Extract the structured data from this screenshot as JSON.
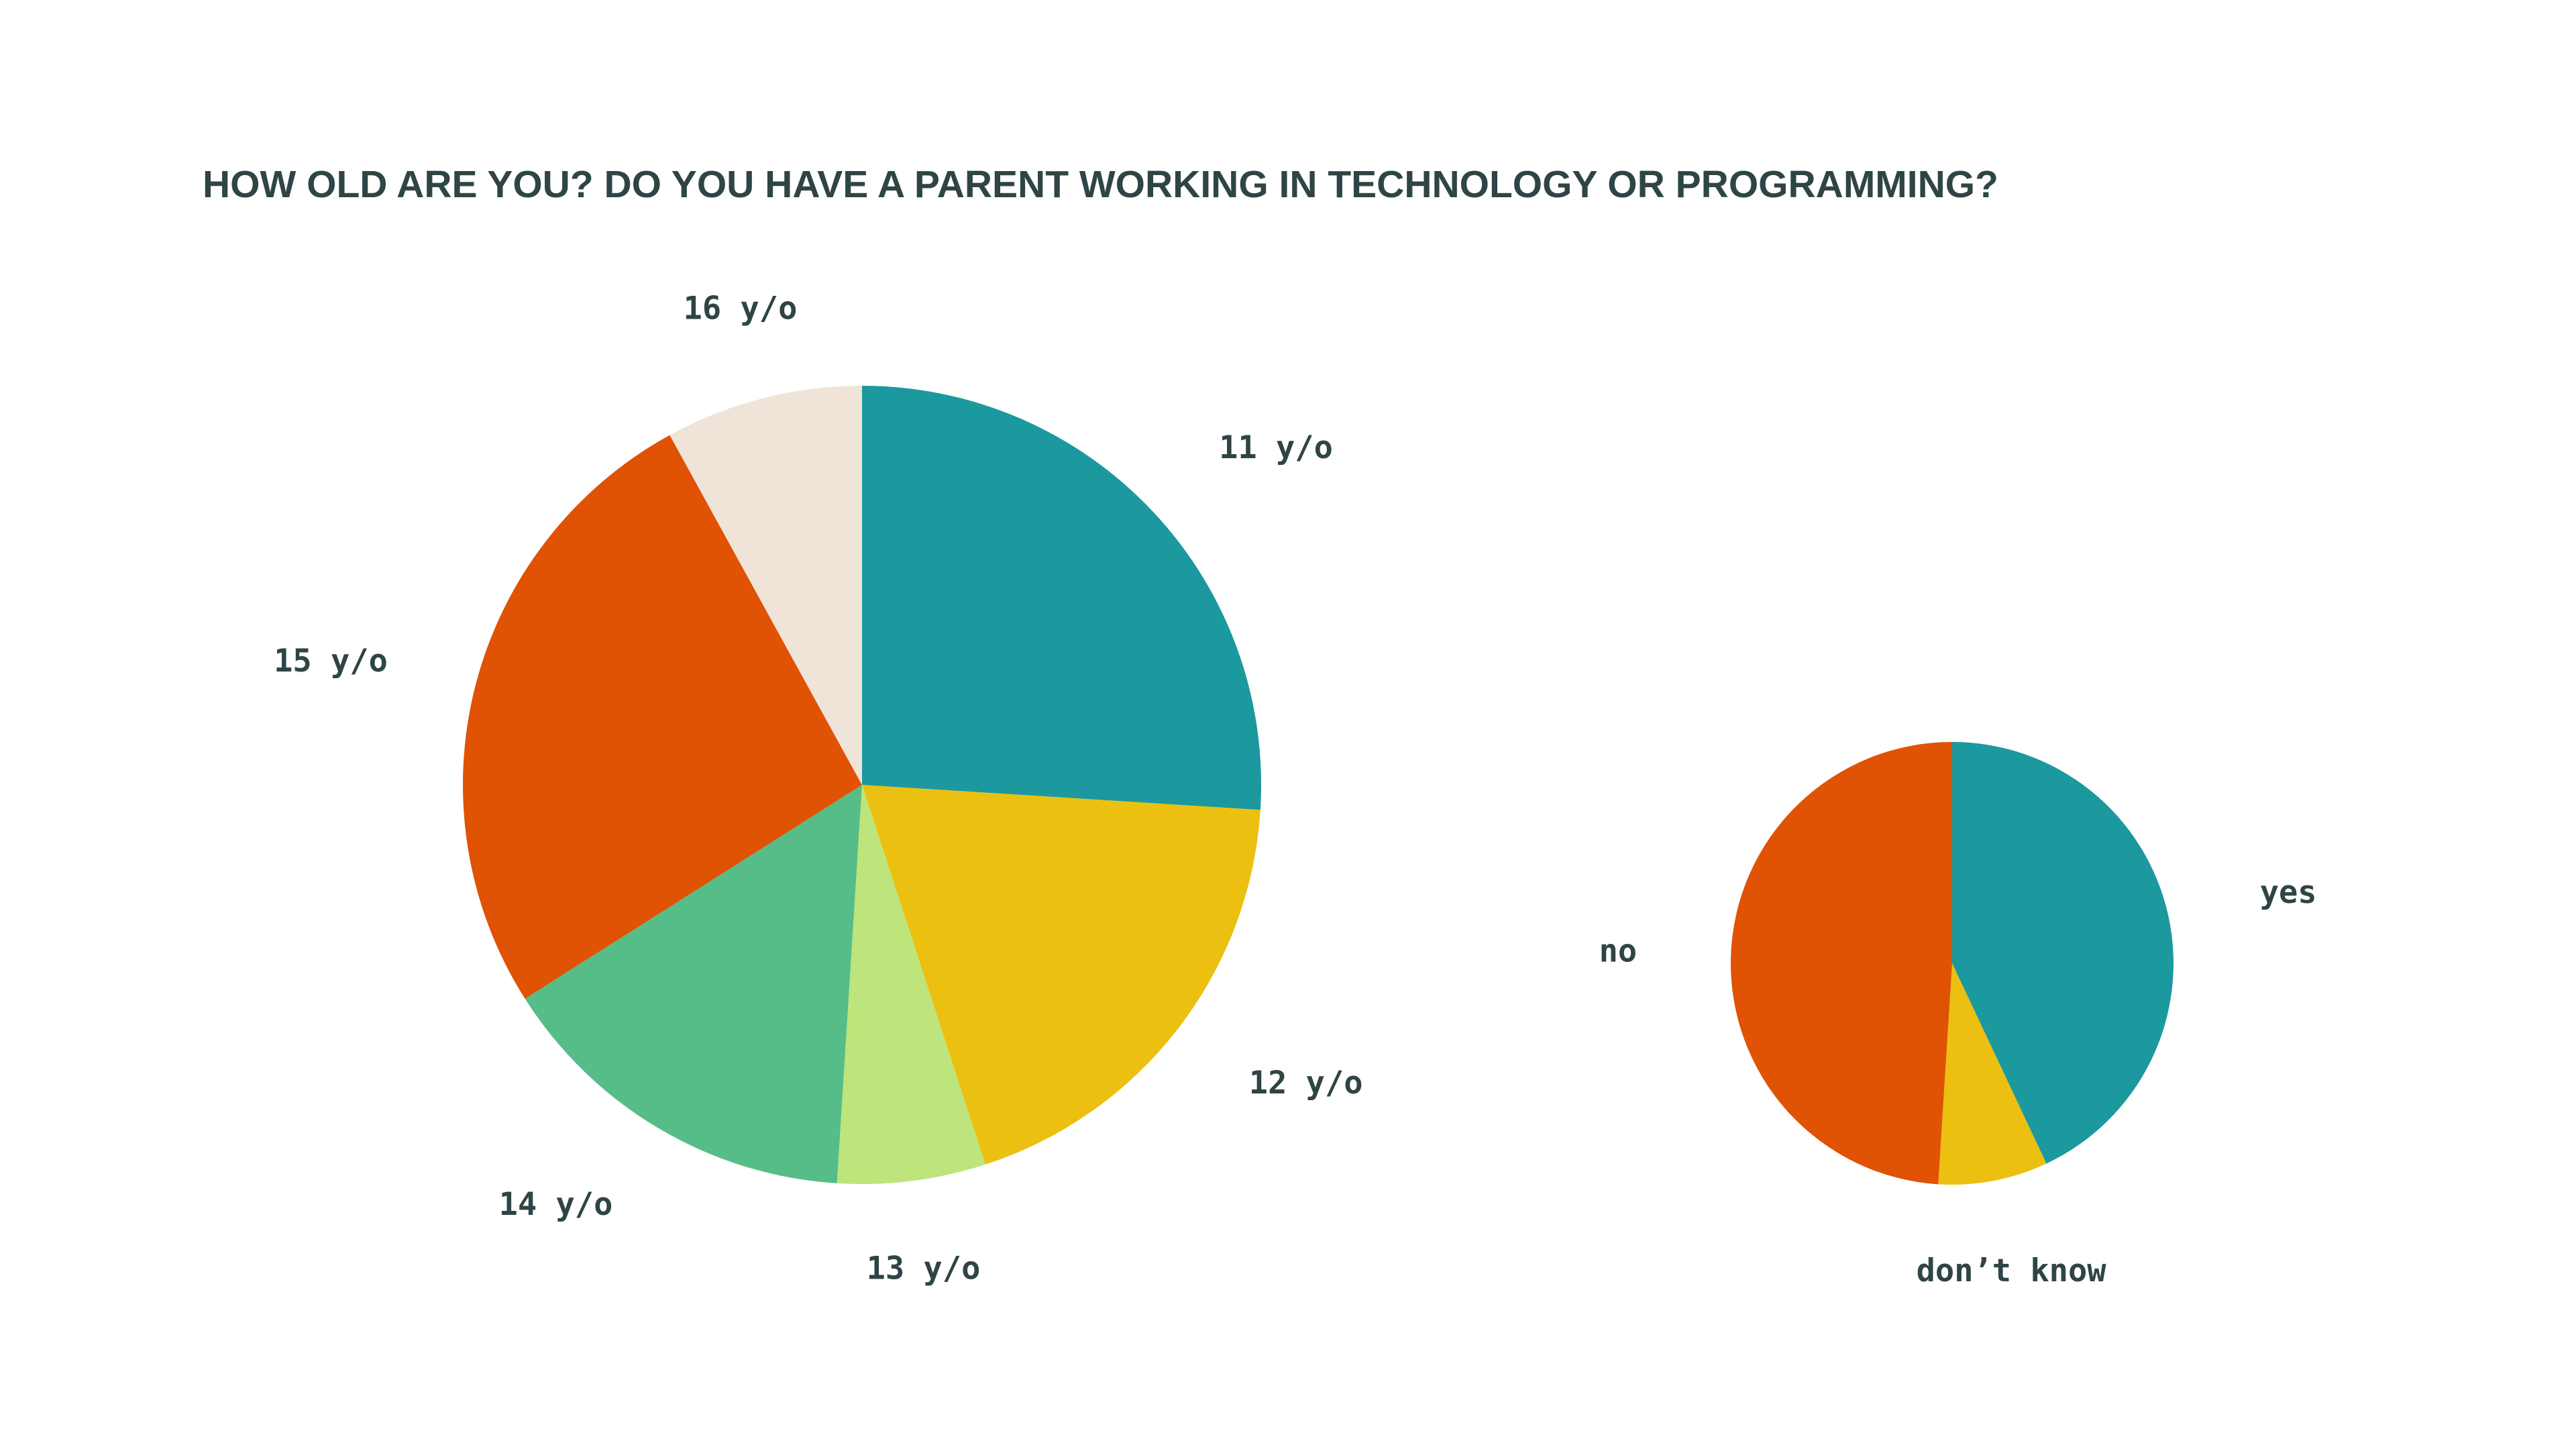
{
  "chart_data": [
    {
      "type": "pie",
      "title": "HOW OLD ARE YOU? DO YOU HAVE A PARENT WORKING IN TECHNOLOGY OR PROGRAMMING?",
      "categories": [
        "11 y/o",
        "12 y/o",
        "13 y/o",
        "14 y/o",
        "15 y/o",
        "16 y/o"
      ],
      "values": [
        26,
        19,
        6,
        15,
        26,
        8
      ],
      "colors": [
        "#1b999f",
        "#ebc010",
        "#bde57b",
        "#57bd88",
        "#e05204",
        "#f0e4d8"
      ],
      "start_angle": "12 o'clock",
      "direction": "clockwise"
    },
    {
      "type": "pie",
      "title": "",
      "categories": [
        "yes",
        "don’t know",
        "no"
      ],
      "values": [
        43,
        8,
        49
      ],
      "colors": [
        "#1b999f",
        "#ebc010",
        "#e05204"
      ],
      "start_angle": "12 o'clock",
      "direction": "clockwise"
    }
  ]
}
